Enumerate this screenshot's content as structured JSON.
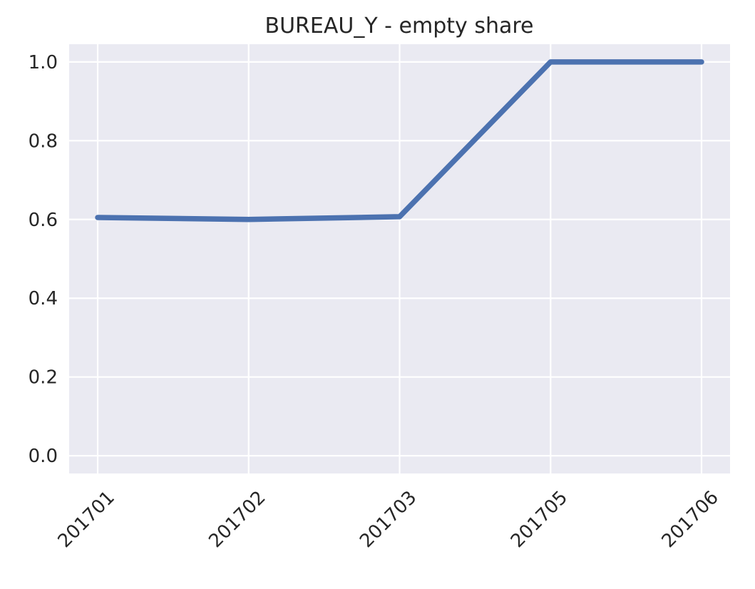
{
  "chart_data": {
    "type": "line",
    "title": "BUREAU_Y - empty share",
    "xlabel": "",
    "ylabel": "",
    "categories": [
      "201701",
      "201702",
      "201703",
      "201705",
      "201706"
    ],
    "series": [
      {
        "values": [
          0.605,
          0.6,
          0.607,
          1.0,
          1.0
        ]
      }
    ],
    "ylim": [
      -0.045,
      1.045
    ],
    "yticks": [
      "0.0",
      "0.2",
      "0.4",
      "0.6",
      "0.8",
      "1.0"
    ],
    "ytick_values": [
      0,
      0.2,
      0.4,
      0.6,
      0.8,
      1.0
    ],
    "xtick_rotation_deg": 45,
    "grid": true,
    "legend": "none",
    "colors": {
      "plot_background": "#EAEAF2",
      "grid": "#FFFFFF",
      "line": "#4C72B0",
      "text": "#262626"
    }
  }
}
